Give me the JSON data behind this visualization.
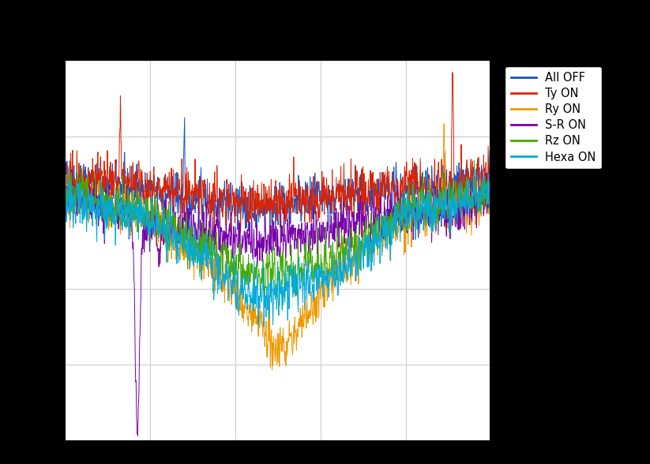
{
  "legend_labels": [
    "All OFF",
    "Ty ON",
    "Ry ON",
    "S-R ON",
    "Rz ON",
    "Hexa ON"
  ],
  "colors": [
    "#1155CC",
    "#DD2200",
    "#EE9900",
    "#7700AA",
    "#44AA00",
    "#00AADD"
  ],
  "background_color": "#ffffff",
  "outer_background": "#000000",
  "grid_color": "#cccccc",
  "ylim": [
    -1.0,
    0.35
  ],
  "xlim": [
    0,
    1000
  ],
  "figsize": [
    8.23,
    5.88
  ],
  "dpi": 100,
  "linewidth": 0.7,
  "seed": 42
}
